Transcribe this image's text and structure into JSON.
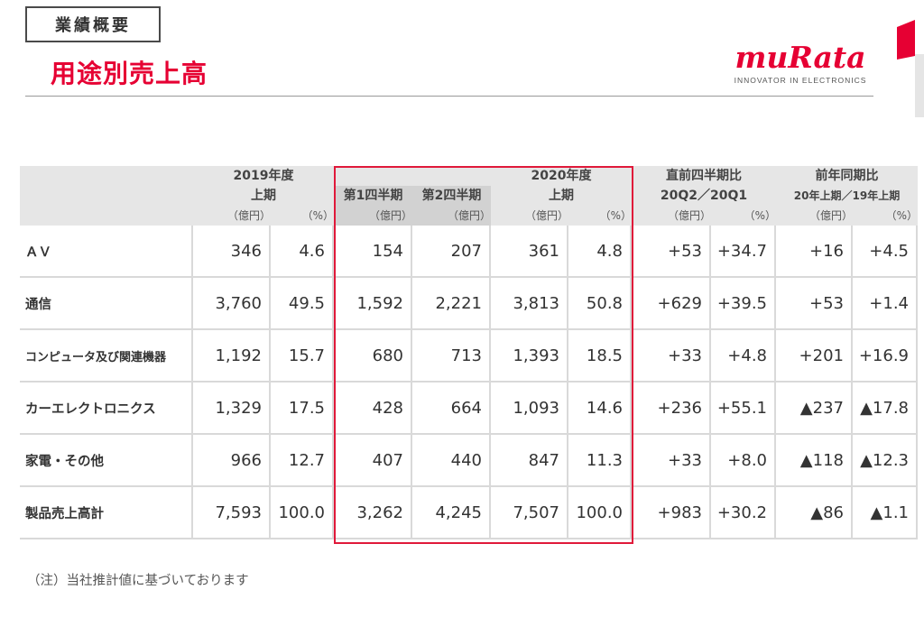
{
  "header": {
    "section_tag": "業績概要",
    "title": "用途別売上高",
    "logo_text": "muRata",
    "logo_tagline": "INNOVATOR IN ELECTRONICS"
  },
  "colors": {
    "accent": "#e60033",
    "header_bg": "#e6e6e6",
    "highlight_border": "#e0193a"
  },
  "table": {
    "headers": {
      "fy2019": "2019年度",
      "fy2019_h1": "上期",
      "q1": "第1四半期",
      "q2": "第2四半期",
      "fy2020": "2020年度",
      "fy2020_h1": "上期",
      "qoq": "直前四半期比",
      "qoq_sub": "20Q2／20Q1",
      "yoy": "前年同期比",
      "yoy_sub": "20年上期／19年上期",
      "unit_yen": "（億円）",
      "unit_pct": "（%）"
    },
    "rows": [
      {
        "label": "ＡＶ",
        "cells": [
          "346",
          "4.6",
          "154",
          "207",
          "361",
          "4.8",
          "+53",
          "+34.7",
          "+16",
          "+4.5"
        ]
      },
      {
        "label": "通信",
        "cells": [
          "3,760",
          "49.5",
          "1,592",
          "2,221",
          "3,813",
          "50.8",
          "+629",
          "+39.5",
          "+53",
          "+1.4"
        ]
      },
      {
        "label": "コンピュータ及び関連機器",
        "cells": [
          "1,192",
          "15.7",
          "680",
          "713",
          "1,393",
          "18.5",
          "+33",
          "+4.8",
          "+201",
          "+16.9"
        ]
      },
      {
        "label": "カーエレクトロニクス",
        "cells": [
          "1,329",
          "17.5",
          "428",
          "664",
          "1,093",
          "14.6",
          "+236",
          "+55.1",
          "▲237",
          "▲17.8"
        ]
      },
      {
        "label": "家電・その他",
        "cells": [
          "966",
          "12.7",
          "407",
          "440",
          "847",
          "11.3",
          "+33",
          "+8.0",
          "▲118",
          "▲12.3"
        ]
      },
      {
        "label": "製品売上高計",
        "cells": [
          "7,593",
          "100.0",
          "3,262",
          "4,245",
          "7,507",
          "100.0",
          "+983",
          "+30.2",
          "▲86",
          "▲1.1"
        ]
      }
    ]
  },
  "note": "（注）当社推計値に基づいております"
}
